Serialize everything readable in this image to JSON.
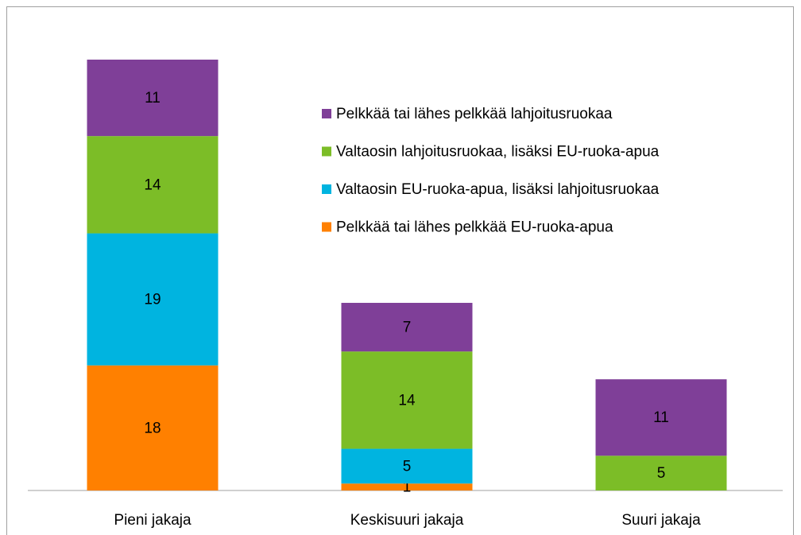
{
  "chart_data": {
    "type": "stacked_bar",
    "categories": [
      "Pieni jakaja",
      "Keskisuuri jakaja",
      "Suuri jakaja"
    ],
    "series": [
      {
        "name": "Pelkkää tai lähes pelkkää EU-ruoka-apua",
        "color": "#ff8000",
        "values": [
          18,
          1,
          null
        ]
      },
      {
        "name": "Valtaosin EU-ruoka-apua, lisäksi lahjoitusruokaa",
        "color": "#00b4e0",
        "values": [
          19,
          5,
          null
        ]
      },
      {
        "name": "Valtaosin lahjoitusruokaa, lisäksi EU-ruoka-apua",
        "color": "#7cbd27",
        "values": [
          14,
          14,
          5
        ]
      },
      {
        "name": "Pelkkää tai lähes pelkkää lahjoitusruokaa",
        "color": "#7f3f98",
        "values": [
          11,
          7,
          11
        ]
      }
    ],
    "legend": "upper right"
  }
}
